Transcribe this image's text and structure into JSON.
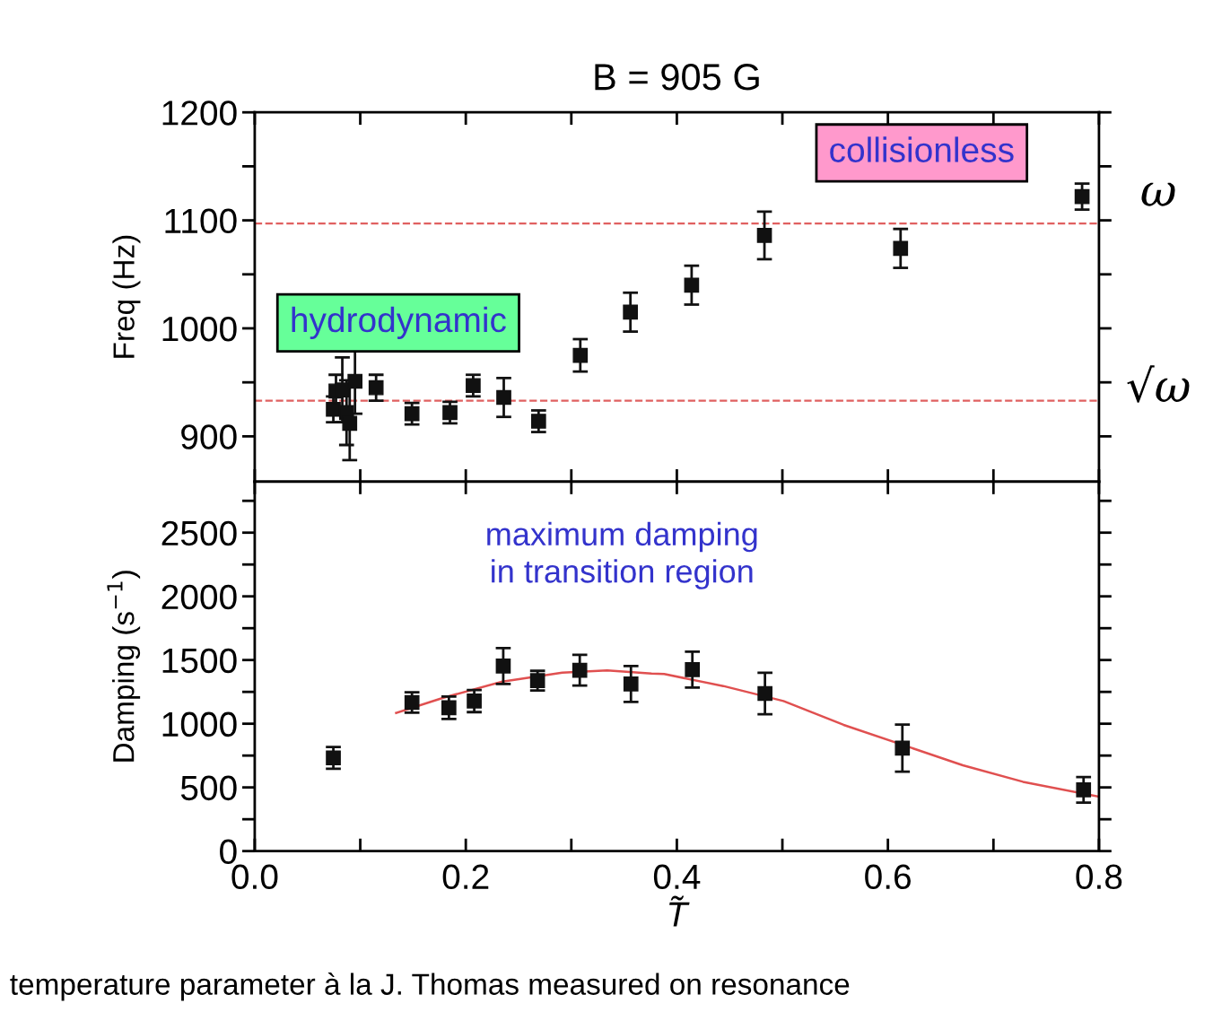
{
  "chart_data": [
    {
      "type": "scatter",
      "title": "B = 905 G",
      "ylabel": "Freq (Hz)",
      "xlim": [
        0,
        0.8
      ],
      "ylim": [
        858,
        1200
      ],
      "xticks": [
        {
          "value": 0,
          "label": null
        },
        {
          "value": 0.1,
          "label": null
        },
        {
          "value": 0.2,
          "label": null
        },
        {
          "value": 0.3,
          "label": null
        },
        {
          "value": 0.4,
          "label": null
        },
        {
          "value": 0.5,
          "label": null
        },
        {
          "value": 0.6,
          "label": null
        },
        {
          "value": 0.7,
          "label": null
        },
        {
          "value": 0.8,
          "label": null
        }
      ],
      "yticks": [
        900,
        {
          "value": 950,
          "label": null
        },
        1000,
        {
          "value": 1050,
          "label": null
        },
        1100,
        {
          "value": 1150,
          "label": null
        },
        1200
      ],
      "tick_labels": "y",
      "marker": "square",
      "series": [
        {
          "color": "#111111",
          "x": [
            0.0745,
            0.077,
            0.083,
            0.087,
            0.09,
            0.095,
            0.115,
            0.149,
            0.185,
            0.207,
            0.236,
            0.269,
            0.3085,
            0.356,
            0.414,
            0.483,
            0.612,
            0.784
          ],
          "values": [
            925,
            942,
            943,
            922,
            912,
            951,
            945,
            921,
            922,
            947,
            936,
            914,
            975,
            1015,
            1040,
            1086,
            1074,
            1122
          ],
          "errors": [
            12,
            15,
            30,
            30,
            34,
            30,
            12,
            10,
            10,
            10,
            18,
            10,
            15,
            18,
            18,
            22,
            18,
            12
          ]
        }
      ],
      "ref_lines": [
        {
          "axis": "y",
          "value": 1097,
          "color": "#e06060",
          "line_style": "dashed"
        },
        {
          "axis": "y",
          "value": 933,
          "color": "#e06060",
          "line_style": "dashed"
        }
      ],
      "annotations": [
        "hydrodynamic",
        "collisionless",
        "ω",
        "√ω"
      ]
    },
    {
      "type": "scatter",
      "xlabel": "T̃",
      "ylabel": "Damping (s$^{−1}$)",
      "xlim": [
        0,
        0.8
      ],
      "ylim": [
        0,
        2900
      ],
      "xticks": [
        {
          "value": 0,
          "label": "0.0"
        },
        {
          "value": 0.1,
          "label": null
        },
        0.2,
        {
          "value": 0.3,
          "label": null
        },
        0.4,
        {
          "value": 0.5,
          "label": null
        },
        0.6,
        {
          "value": 0.7,
          "label": null
        },
        0.8
      ],
      "yticks": [
        0,
        {
          "value": 250,
          "label": null
        },
        500,
        {
          "value": 750,
          "label": null
        },
        1000,
        {
          "value": 1250,
          "label": null
        },
        1500,
        {
          "value": 1750,
          "label": null
        },
        2000,
        {
          "value": 2250,
          "label": null
        },
        2500,
        {
          "value": 2750,
          "label": null
        }
      ],
      "marker": "square",
      "series": [
        {
          "color": "#111111",
          "x": [
            0.0745,
            0.149,
            0.184,
            0.208,
            0.2355,
            0.268,
            0.308,
            0.3565,
            0.4147,
            0.4835,
            0.6137,
            0.7854
          ],
          "values": [
            732,
            1167,
            1125,
            1178,
            1453,
            1338,
            1420,
            1312,
            1425,
            1237,
            808,
            481
          ],
          "errors": [
            86,
            80,
            88,
            87,
            141,
            77,
            121,
            141,
            141,
            163,
            185,
            100
          ]
        },
        {
          "type": "line",
          "color": "#e05050",
          "marker": "none",
          "x": [
            0.134,
            0.178,
            0.2347,
            0.2914,
            0.334,
            0.376,
            0.388,
            0.444,
            0.501,
            0.558,
            0.671,
            0.728,
            0.8
          ],
          "values": [
            1085,
            1202,
            1331,
            1401,
            1418,
            1394,
            1390,
            1296,
            1178,
            991,
            674,
            544,
            427
          ]
        }
      ],
      "annotations": [
        "maximum damping\nin transition region",
        "temperature parameter à la J. Thomas measured on resonance"
      ]
    }
  ]
}
